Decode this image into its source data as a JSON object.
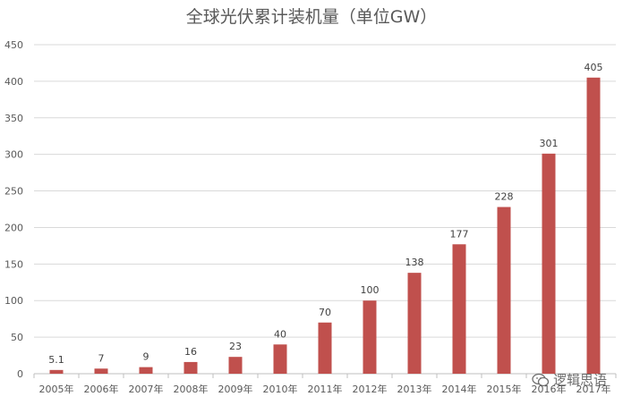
{
  "chart_data": {
    "type": "bar",
    "title": "全球光伏累计装机量（单位GW）",
    "categories": [
      "2005年",
      "2006年",
      "2007年",
      "2008年",
      "2009年",
      "2010年",
      "2011年",
      "2012年",
      "2013年",
      "2014年",
      "2015年",
      "2016年",
      "2017年"
    ],
    "values": [
      5.1,
      7,
      9,
      16,
      23,
      40,
      70,
      100,
      138,
      177,
      228,
      301,
      405
    ],
    "data_labels": [
      "5.1",
      "7",
      "9",
      "16",
      "23",
      "40",
      "70",
      "100",
      "138",
      "177",
      "228",
      "301",
      "405"
    ],
    "yticks": [
      0,
      50,
      100,
      150,
      200,
      250,
      300,
      350,
      400,
      450
    ],
    "ylim": [
      0,
      450
    ],
    "xlabel": "",
    "ylabel": "",
    "grid": true,
    "legend": "none",
    "bar_color": "#c0504d"
  },
  "watermark": {
    "icon": "wechat-icon",
    "text": "逻辑思语"
  }
}
